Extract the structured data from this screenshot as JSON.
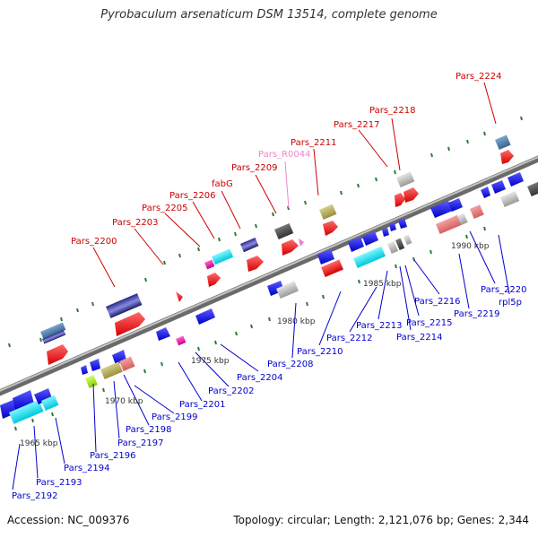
{
  "title": "Pyrobaculum arsenaticum DSM 13514, complete genome",
  "footer": {
    "accession": "Accession: NC_009376",
    "topology": "Topology: circular; Length: 2,121,076 bp; Genes: 2,344"
  },
  "colors": {
    "backbone": "#8c8c8c",
    "tick": "#2e7d32",
    "label_top": "#cc0000",
    "label_rna": "#ee88cc",
    "label_bottom": "#0000cc"
  },
  "scale_labels": [
    "1965 kbp",
    "1970 kbp",
    "1975 kbp",
    "1980 kbp",
    "1985 kbp",
    "1990 kbp"
  ],
  "labels_top": [
    "Pars_2224",
    "Pars_2218",
    "Pars_2217",
    "Pars_2211",
    "Pars_R0044",
    "Pars_2209",
    "fabG",
    "Pars_2206",
    "Pars_2205",
    "Pars_2203",
    "Pars_2200"
  ],
  "labels_bottom": [
    "rpl5p",
    "Pars_2220",
    "Pars_2219",
    "Pars_2216",
    "Pars_2215",
    "Pars_2214",
    "Pars_2213",
    "Pars_2212",
    "Pars_2210",
    "Pars_2208",
    "Pars_2204",
    "Pars_2202",
    "Pars_2201",
    "Pars_2199",
    "Pars_2198",
    "Pars_2197",
    "Pars_2196",
    "Pars_2194",
    "Pars_2193",
    "Pars_2192"
  ]
}
